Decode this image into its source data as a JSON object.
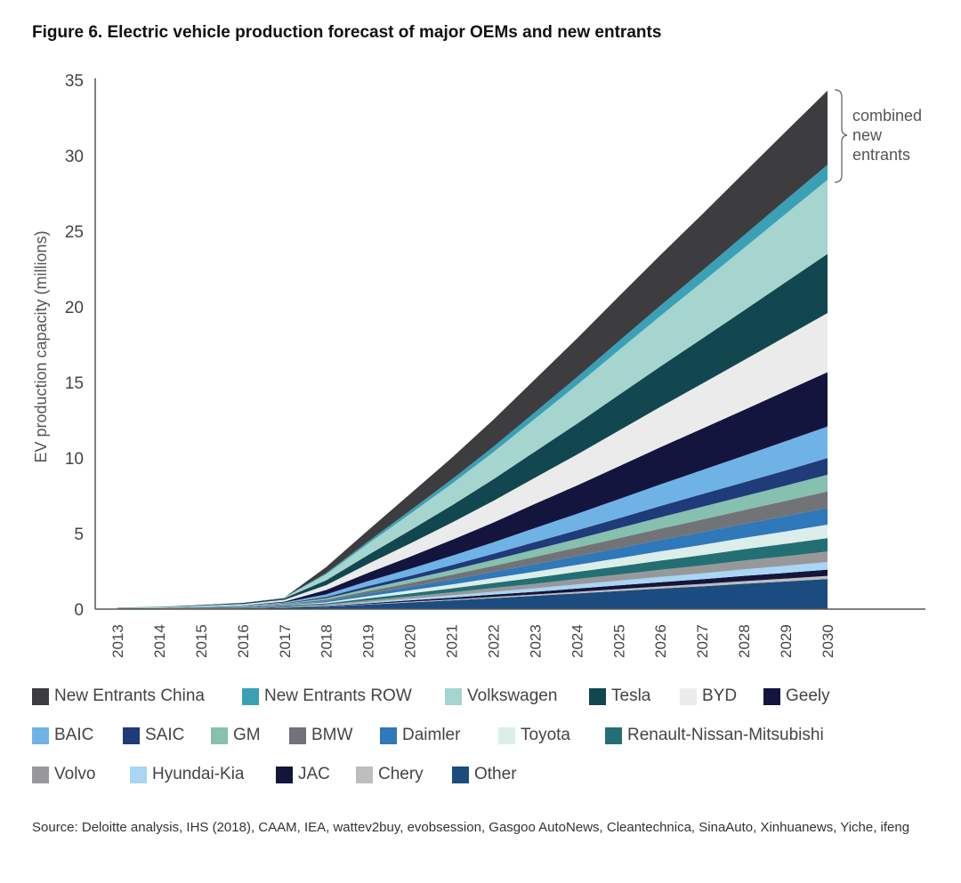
{
  "title": "Figure 6. Electric vehicle production forecast of major OEMs and new entrants",
  "annotation": [
    "combined",
    "new",
    "entrants"
  ],
  "source": "Source: Deloitte analysis, IHS (2018), CAAM, IEA, wattev2buy, evobsession, Gasgoo AutoNews, Cleantechnica, SinaAuto, Xinhuanews, Yiche, ifeng",
  "chart_data": {
    "type": "area",
    "stacked": true,
    "title": "Figure 6. Electric vehicle production forecast of major OEMs and new entrants",
    "xlabel": "",
    "ylabel": "EV production capacity (millions)",
    "ylim": [
      0,
      35
    ],
    "y_ticks": [
      "0",
      "5",
      "10",
      "15",
      "20",
      "25",
      "30",
      "35"
    ],
    "categories": [
      "2013",
      "2014",
      "2015",
      "2016",
      "2017",
      "2018",
      "2019",
      "2020",
      "2021",
      "2022",
      "2023",
      "2024",
      "2025",
      "2026",
      "2027",
      "2028",
      "2029",
      "2030"
    ],
    "legend_position": "bottom",
    "series": [
      {
        "name": "Other",
        "color": "#1c4b80",
        "values": [
          0.03,
          0.03,
          0.04,
          0.05,
          0.1,
          0.16,
          0.3,
          0.44,
          0.58,
          0.73,
          0.88,
          1.04,
          1.2,
          1.36,
          1.51,
          1.68,
          1.83,
          1.99
        ]
      },
      {
        "name": "Chery",
        "color": "#bdbdbd",
        "values": [
          0,
          0,
          0.01,
          0.01,
          0.02,
          0.02,
          0.03,
          0.05,
          0.06,
          0.08,
          0.09,
          0.11,
          0.12,
          0.14,
          0.16,
          0.17,
          0.19,
          0.21
        ]
      },
      {
        "name": "JAC",
        "color": "#14153a",
        "values": [
          0,
          0,
          0.01,
          0.01,
          0.02,
          0.03,
          0.06,
          0.09,
          0.12,
          0.15,
          0.18,
          0.21,
          0.25,
          0.28,
          0.31,
          0.35,
          0.38,
          0.41
        ]
      },
      {
        "name": "Hyundai-Kia",
        "color": "#a8d6f4",
        "values": [
          0,
          0,
          0.01,
          0.01,
          0.02,
          0.04,
          0.08,
          0.11,
          0.15,
          0.19,
          0.23,
          0.27,
          0.31,
          0.35,
          0.39,
          0.43,
          0.47,
          0.51
        ]
      },
      {
        "name": "Volvo",
        "color": "#98989b",
        "values": [
          0,
          0,
          0,
          0,
          0.01,
          0.06,
          0.1,
          0.15,
          0.2,
          0.25,
          0.3,
          0.36,
          0.41,
          0.47,
          0.52,
          0.58,
          0.63,
          0.69
        ]
      },
      {
        "name": "Renault-Nissan-Mitsubishi",
        "color": "#236f74",
        "values": [
          0.02,
          0.03,
          0.04,
          0.05,
          0.08,
          0.07,
          0.14,
          0.2,
          0.26,
          0.33,
          0.4,
          0.47,
          0.54,
          0.61,
          0.68,
          0.75,
          0.82,
          0.89
        ]
      },
      {
        "name": "Toyota",
        "color": "#dbeee9",
        "values": [
          0,
          0,
          0,
          0.01,
          0.02,
          0.07,
          0.14,
          0.2,
          0.26,
          0.33,
          0.4,
          0.47,
          0.54,
          0.61,
          0.68,
          0.75,
          0.82,
          0.89
        ]
      },
      {
        "name": "Daimler",
        "color": "#2f78b9",
        "values": [
          0,
          0,
          0.01,
          0.01,
          0.02,
          0.09,
          0.17,
          0.24,
          0.32,
          0.4,
          0.49,
          0.57,
          0.66,
          0.75,
          0.84,
          0.92,
          1.01,
          1.1
        ]
      },
      {
        "name": "BMW",
        "color": "#727377",
        "values": [
          0,
          0.01,
          0.01,
          0.02,
          0.04,
          0.09,
          0.17,
          0.24,
          0.32,
          0.4,
          0.49,
          0.57,
          0.66,
          0.75,
          0.84,
          0.92,
          1.01,
          1.1
        ]
      },
      {
        "name": "GM",
        "color": "#86c0ae",
        "values": [
          0.01,
          0.01,
          0.01,
          0.02,
          0.03,
          0.09,
          0.17,
          0.24,
          0.32,
          0.4,
          0.49,
          0.57,
          0.66,
          0.75,
          0.84,
          0.92,
          1.01,
          1.1
        ]
      },
      {
        "name": "SAIC",
        "color": "#1f3b7a",
        "values": [
          0,
          0,
          0.01,
          0.01,
          0.03,
          0.09,
          0.17,
          0.24,
          0.32,
          0.4,
          0.49,
          0.57,
          0.66,
          0.75,
          0.84,
          0.92,
          1.01,
          1.1
        ]
      },
      {
        "name": "BAIC",
        "color": "#6fb3e6",
        "values": [
          0,
          0.01,
          0.02,
          0.03,
          0.06,
          0.17,
          0.32,
          0.46,
          0.61,
          0.76,
          0.93,
          1.09,
          1.26,
          1.43,
          1.59,
          1.76,
          1.93,
          2.09
        ]
      },
      {
        "name": "Geely",
        "color": "#14153f",
        "values": [
          0,
          0,
          0.01,
          0.02,
          0.05,
          0.29,
          0.55,
          0.8,
          1.05,
          1.31,
          1.6,
          1.88,
          2.17,
          2.46,
          2.74,
          3.03,
          3.32,
          3.6
        ]
      },
      {
        "name": "BYD",
        "color": "#ebebeb",
        "values": [
          0.02,
          0.03,
          0.05,
          0.08,
          0.12,
          0.32,
          0.59,
          0.87,
          1.14,
          1.43,
          1.73,
          2.04,
          2.36,
          2.67,
          2.98,
          3.29,
          3.6,
          3.91
        ]
      },
      {
        "name": "Tesla",
        "color": "#124750",
        "values": [
          0.02,
          0.03,
          0.05,
          0.08,
          0.1,
          0.32,
          0.59,
          0.87,
          1.14,
          1.43,
          1.73,
          2.04,
          2.36,
          2.67,
          2.98,
          3.29,
          3.6,
          3.91
        ]
      },
      {
        "name": "Volkswagen",
        "color": "#a6d4cf",
        "values": [
          0,
          0,
          0.01,
          0.02,
          0.05,
          0.4,
          0.74,
          1.09,
          1.43,
          1.79,
          2.17,
          2.56,
          2.96,
          3.35,
          3.73,
          4.13,
          4.52,
          4.9
        ]
      },
      {
        "name": "New Entrants ROW",
        "color": "#3aa0b5",
        "values": [
          0,
          0,
          0,
          0,
          0,
          0.08,
          0.15,
          0.22,
          0.29,
          0.36,
          0.44,
          0.52,
          0.6,
          0.68,
          0.76,
          0.84,
          0.92,
          1.0
        ]
      },
      {
        "name": "New Entrants China",
        "color": "#3d3d40",
        "values": [
          0,
          0,
          0,
          0,
          0,
          0.4,
          0.74,
          1.09,
          1.43,
          1.79,
          2.17,
          2.56,
          2.96,
          3.35,
          3.73,
          4.13,
          4.52,
          4.9
        ]
      }
    ],
    "legend_order": [
      "New Entrants China",
      "New Entrants ROW",
      "Volkswagen",
      "Tesla",
      "BYD",
      "Geely",
      "BAIC",
      "SAIC",
      "GM",
      "BMW",
      "Daimler",
      "Toyota",
      "Renault-Nissan-Mitsubishi",
      "Volvo",
      "Hyundai-Kia",
      "JAC",
      "Chery",
      "Other"
    ]
  }
}
